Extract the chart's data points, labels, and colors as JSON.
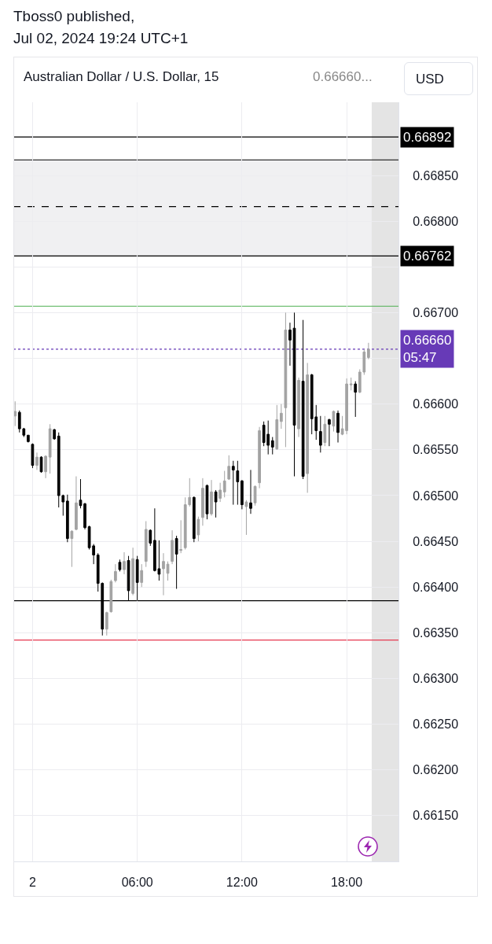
{
  "chart_data": {
    "type": "candlestick",
    "title": "Tboss0 published,",
    "subtitle": "Jul 02, 2024 19:24 UTC+1",
    "annotations": [
      "Australian Dollar / U.S. Dollar, 15",
      "0.66660...",
      "USD"
    ],
    "x": [
      "2024-07-01T23:00",
      "2024-07-01T23:15",
      "2024-07-01T23:30",
      "2024-07-01T23:45",
      "2024-07-02T00:00",
      "2024-07-02T00:15",
      "2024-07-02T00:30",
      "2024-07-02T00:45",
      "2024-07-02T01:00",
      "2024-07-02T01:15",
      "2024-07-02T01:30",
      "2024-07-02T01:45",
      "2024-07-02T02:00",
      "2024-07-02T02:15",
      "2024-07-02T02:30",
      "2024-07-02T02:45",
      "2024-07-02T03:00",
      "2024-07-02T03:15",
      "2024-07-02T03:30",
      "2024-07-02T03:45",
      "2024-07-02T04:00",
      "2024-07-02T04:15",
      "2024-07-02T04:30",
      "2024-07-02T04:45",
      "2024-07-02T05:00",
      "2024-07-02T05:15",
      "2024-07-02T05:30",
      "2024-07-02T05:45",
      "2024-07-02T06:00",
      "2024-07-02T06:15",
      "2024-07-02T06:30",
      "2024-07-02T06:45",
      "2024-07-02T07:00",
      "2024-07-02T07:15",
      "2024-07-02T07:30",
      "2024-07-02T07:45",
      "2024-07-02T08:00",
      "2024-07-02T08:15",
      "2024-07-02T08:30",
      "2024-07-02T08:45",
      "2024-07-02T09:00",
      "2024-07-02T09:15",
      "2024-07-02T09:30",
      "2024-07-02T09:45",
      "2024-07-02T10:00",
      "2024-07-02T10:15",
      "2024-07-02T10:30",
      "2024-07-02T10:45",
      "2024-07-02T11:00",
      "2024-07-02T11:15",
      "2024-07-02T11:30",
      "2024-07-02T11:45",
      "2024-07-02T12:00",
      "2024-07-02T12:15",
      "2024-07-02T12:30",
      "2024-07-02T12:45",
      "2024-07-02T13:00",
      "2024-07-02T13:15",
      "2024-07-02T13:30",
      "2024-07-02T13:45",
      "2024-07-02T14:00",
      "2024-07-02T14:15",
      "2024-07-02T14:30",
      "2024-07-02T14:45",
      "2024-07-02T15:00",
      "2024-07-02T15:15",
      "2024-07-02T15:30",
      "2024-07-02T15:45",
      "2024-07-02T16:00",
      "2024-07-02T16:15",
      "2024-07-02T16:30",
      "2024-07-02T16:45",
      "2024-07-02T17:00",
      "2024-07-02T17:15",
      "2024-07-02T17:30",
      "2024-07-02T17:45",
      "2024-07-02T18:00",
      "2024-07-02T18:15",
      "2024-07-02T18:30",
      "2024-07-02T18:45",
      "2024-07-02T19:00",
      "2024-07-02T19:15"
    ],
    "ohlc": [
      [
        0.66587,
        0.66603,
        0.66576,
        0.66592
      ],
      [
        0.66591,
        0.66593,
        0.66569,
        0.66573
      ],
      [
        0.66573,
        0.66574,
        0.66564,
        0.66566
      ],
      [
        0.66566,
        0.66566,
        0.66558,
        0.66559
      ],
      [
        0.66556,
        0.66557,
        0.6653,
        0.66533
      ],
      [
        0.66533,
        0.66547,
        0.66528,
        0.66542
      ],
      [
        0.66542,
        0.66543,
        0.66525,
        0.66526
      ],
      [
        0.66526,
        0.66544,
        0.66519,
        0.66543
      ],
      [
        0.66542,
        0.66578,
        0.66524,
        0.66573
      ],
      [
        0.66572,
        0.66573,
        0.66561,
        0.66562
      ],
      [
        0.66565,
        0.66569,
        0.66487,
        0.665
      ],
      [
        0.665,
        0.66501,
        0.66478,
        0.66493
      ],
      [
        0.66494,
        0.66501,
        0.66449,
        0.66453
      ],
      [
        0.66453,
        0.66462,
        0.66422,
        0.66461
      ],
      [
        0.66463,
        0.66521,
        0.66462,
        0.66492
      ],
      [
        0.66495,
        0.66518,
        0.66486,
        0.66489
      ],
      [
        0.66491,
        0.66492,
        0.66463,
        0.66465
      ],
      [
        0.66466,
        0.66467,
        0.66441,
        0.66443
      ],
      [
        0.66445,
        0.66447,
        0.66425,
        0.66435
      ],
      [
        0.66435,
        0.66437,
        0.66395,
        0.66404
      ],
      [
        0.66404,
        0.66405,
        0.66347,
        0.66354
      ],
      [
        0.66354,
        0.66373,
        0.66347,
        0.66372
      ],
      [
        0.66373,
        0.66408,
        0.66372,
        0.66406
      ],
      [
        0.66407,
        0.66425,
        0.66405,
        0.66417
      ],
      [
        0.66427,
        0.6643,
        0.66417,
        0.66419
      ],
      [
        0.66419,
        0.66438,
        0.66414,
        0.66428
      ],
      [
        0.66429,
        0.66434,
        0.66385,
        0.66396
      ],
      [
        0.66393,
        0.66443,
        0.66391,
        0.66431
      ],
      [
        0.6643,
        0.66434,
        0.66385,
        0.66405
      ],
      [
        0.66405,
        0.66425,
        0.664,
        0.66418
      ],
      [
        0.66428,
        0.66472,
        0.66422,
        0.66463
      ],
      [
        0.66462,
        0.66463,
        0.66445,
        0.66448
      ],
      [
        0.66451,
        0.66486,
        0.66417,
        0.66418
      ],
      [
        0.6642,
        0.66451,
        0.66407,
        0.66414
      ],
      [
        0.6642,
        0.66437,
        0.66391,
        0.66428
      ],
      [
        0.66415,
        0.66428,
        0.66407,
        0.66425
      ],
      [
        0.66428,
        0.66462,
        0.66425,
        0.66451
      ],
      [
        0.66453,
        0.66456,
        0.66398,
        0.66436
      ],
      [
        0.6644,
        0.66473,
        0.66437,
        0.66441
      ],
      [
        0.66443,
        0.66498,
        0.66441,
        0.6649
      ],
      [
        0.6649,
        0.66519,
        0.66488,
        0.66498
      ],
      [
        0.66498,
        0.66499,
        0.66449,
        0.66453
      ],
      [
        0.66457,
        0.66477,
        0.6645,
        0.66474
      ],
      [
        0.66476,
        0.66519,
        0.66467,
        0.66508
      ],
      [
        0.66511,
        0.66512,
        0.66474,
        0.6648
      ],
      [
        0.6648,
        0.66517,
        0.66478,
        0.66504
      ],
      [
        0.66504,
        0.66506,
        0.66476,
        0.66493
      ],
      [
        0.66497,
        0.66514,
        0.66493,
        0.66506
      ],
      [
        0.66504,
        0.66527,
        0.66498,
        0.66516
      ],
      [
        0.66518,
        0.66544,
        0.66517,
        0.66532
      ],
      [
        0.66532,
        0.66538,
        0.6649,
        0.66528
      ],
      [
        0.66527,
        0.66538,
        0.6649,
        0.66515
      ],
      [
        0.66516,
        0.66517,
        0.66485,
        0.6649
      ],
      [
        0.66488,
        0.66495,
        0.66457,
        0.66493
      ],
      [
        0.66492,
        0.66528,
        0.6648,
        0.66486
      ],
      [
        0.66492,
        0.66511,
        0.66489,
        0.6651
      ],
      [
        0.66514,
        0.66575,
        0.66508,
        0.66571
      ],
      [
        0.66577,
        0.66581,
        0.66554,
        0.66558
      ],
      [
        0.66567,
        0.66582,
        0.66545,
        0.66555
      ],
      [
        0.6656,
        0.66564,
        0.66545,
        0.66553
      ],
      [
        0.66551,
        0.66599,
        0.6655,
        0.66583
      ],
      [
        0.66581,
        0.666,
        0.66573,
        0.6659
      ],
      [
        0.66596,
        0.667,
        0.66553,
        0.66681
      ],
      [
        0.66681,
        0.66689,
        0.66642,
        0.6667
      ],
      [
        0.66683,
        0.667,
        0.66521,
        0.66577
      ],
      [
        0.66573,
        0.66629,
        0.66564,
        0.66626
      ],
      [
        0.66625,
        0.66692,
        0.66518,
        0.66521
      ],
      [
        0.66524,
        0.66645,
        0.66503,
        0.66632
      ],
      [
        0.66632,
        0.66633,
        0.66567,
        0.66584
      ],
      [
        0.66586,
        0.66599,
        0.66561,
        0.66571
      ],
      [
        0.6657,
        0.66587,
        0.66547,
        0.66555
      ],
      [
        0.66558,
        0.66587,
        0.66554,
        0.66578
      ],
      [
        0.66583,
        0.66584,
        0.66554,
        0.66578
      ],
      [
        0.66576,
        0.66593,
        0.6657,
        0.66592
      ],
      [
        0.6659,
        0.66593,
        0.66558,
        0.66569
      ],
      [
        0.66567,
        0.66587,
        0.66566,
        0.66573
      ],
      [
        0.66571,
        0.66628,
        0.66567,
        0.66622
      ],
      [
        0.66621,
        0.66629,
        0.66615,
        0.66622
      ],
      [
        0.66622,
        0.66625,
        0.66586,
        0.66613
      ],
      [
        0.66613,
        0.66638,
        0.66612,
        0.66635
      ],
      [
        0.66635,
        0.6666,
        0.66632,
        0.66657
      ],
      [
        0.66651,
        0.66667,
        0.66649,
        0.6666
      ]
    ],
    "colors": [
      "#a3a3a3",
      "#000000",
      "#000000",
      "#000000",
      "#000000",
      "#a3a3a3",
      "#000000",
      "#a3a3a3",
      "#a3a3a3",
      "#000000",
      "#000000",
      "#000000",
      "#000000",
      "#a3a3a3",
      "#a3a3a3",
      "#000000",
      "#000000",
      "#000000",
      "#000000",
      "#000000",
      "#000000",
      "#a3a3a3",
      "#a3a3a3",
      "#a3a3a3",
      "#000000",
      "#a3a3a3",
      "#000000",
      "#a3a3a3",
      "#000000",
      "#a3a3a3",
      "#a3a3a3",
      "#000000",
      "#000000",
      "#000000",
      "#a3a3a3",
      "#a3a3a3",
      "#a3a3a3",
      "#000000",
      "#a3a3a3",
      "#a3a3a3",
      "#a3a3a3",
      "#000000",
      "#a3a3a3",
      "#a3a3a3",
      "#000000",
      "#a3a3a3",
      "#000000",
      "#a3a3a3",
      "#a3a3a3",
      "#a3a3a3",
      "#000000",
      "#000000",
      "#000000",
      "#a3a3a3",
      "#000000",
      "#a3a3a3",
      "#a3a3a3",
      "#000000",
      "#000000",
      "#000000",
      "#a3a3a3",
      "#a3a3a3",
      "#a3a3a3",
      "#000000",
      "#000000",
      "#a3a3a3",
      "#000000",
      "#a3a3a3",
      "#000000",
      "#000000",
      "#000000",
      "#a3a3a3",
      "#000000",
      "#a3a3a3",
      "#000000",
      "#a3a3a3",
      "#a3a3a3",
      "#a3a3a3",
      "#000000",
      "#a3a3a3",
      "#a3a3a3",
      "#a3a3a3"
    ],
    "xlim": [
      "2024-07-01T22:54",
      "2024-07-02T20:58"
    ],
    "xticks": [
      {
        "value": "2024-07-02",
        "label": "2"
      },
      {
        "value": "2024-07-02T06:00",
        "label": "06:00"
      },
      {
        "value": "2024-07-02T12:00",
        "label": "12:00"
      },
      {
        "value": "2024-07-02T18:00",
        "label": "18:00"
      }
    ],
    "ylim": [
      0.661,
      0.6693
    ],
    "yticks": [
      {
        "value": 0.6615,
        "label": "0.66150"
      },
      {
        "value": 0.662,
        "label": "0.66200"
      },
      {
        "value": 0.6625,
        "label": "0.66250"
      },
      {
        "value": 0.663,
        "label": "0.66300"
      },
      {
        "value": 0.6635,
        "label": "0.66350"
      },
      {
        "value": 0.664,
        "label": "0.66400"
      },
      {
        "value": 0.6645,
        "label": "0.66450"
      },
      {
        "value": 0.665,
        "label": "0.66500"
      },
      {
        "value": 0.6655,
        "label": "0.66550"
      },
      {
        "value": 0.666,
        "label": "0.66600"
      },
      {
        "value": 0.6665,
        "label": null
      },
      {
        "value": 0.667,
        "label": "0.66700"
      },
      {
        "value": 0.6675,
        "label": null
      },
      {
        "value": 0.668,
        "label": "0.66800"
      },
      {
        "value": 0.6685,
        "label": "0.66850"
      }
    ],
    "bands": [
      {
        "axis": "y",
        "from": 0.66762,
        "to": 0.66867,
        "color": "#f0f0f2"
      },
      {
        "axis": "x",
        "from": "2024-07-02T19:26",
        "to": "2024-07-02T20:58",
        "color": "#e4e4e4"
      }
    ],
    "ref_lines": [
      {
        "axis": "y",
        "value": 0.66867,
        "color": "#000000",
        "line_style": "solid"
      },
      {
        "axis": "y",
        "value": 0.66816,
        "color": "#000000",
        "line_style": "dashed"
      },
      {
        "axis": "y",
        "value": 0.66762,
        "label": "0.66762",
        "color": "#000000",
        "line_style": "solid"
      },
      {
        "axis": "y",
        "value": 0.66892,
        "label": "0.66892",
        "color": "#000000",
        "line_style": "solid"
      },
      {
        "axis": "y",
        "value": 0.66707,
        "color": "#4caf50",
        "line_style": "solid"
      },
      {
        "axis": "y",
        "value": 0.6666,
        "label": "0.66660\n05:47",
        "color": "#673ab7",
        "line_style": "dotted"
      },
      {
        "axis": "y",
        "value": 0.66385,
        "color": "#000000",
        "line_style": "solid"
      },
      {
        "axis": "y",
        "value": 0.66342,
        "color": "#e53950",
        "line_style": "solid"
      }
    ],
    "grid": true
  }
}
